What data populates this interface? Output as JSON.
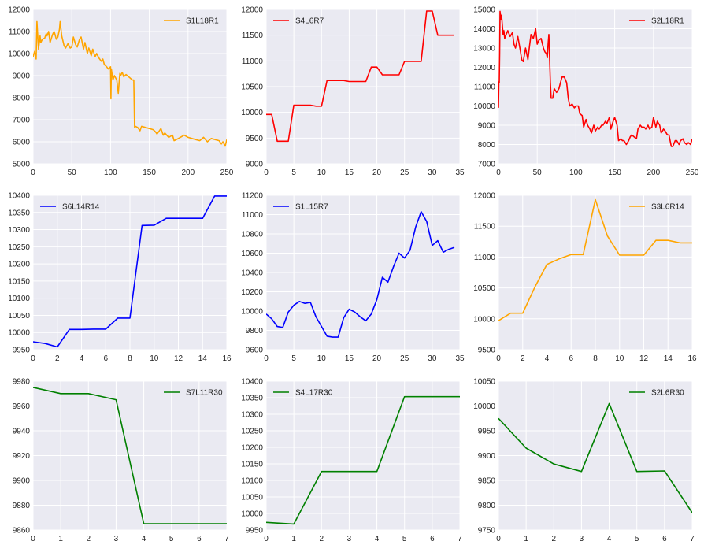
{
  "chart_data": [
    {
      "type": "line",
      "series": [
        {
          "name": "S1L18R1",
          "color": "#ffa500",
          "x": [
            0,
            2,
            4,
            5,
            7,
            9,
            10,
            12,
            15,
            17,
            18,
            20,
            22,
            25,
            27,
            28,
            30,
            32,
            34,
            35,
            37,
            40,
            42,
            45,
            48,
            50,
            52,
            55,
            57,
            60,
            62,
            65,
            67,
            70,
            72,
            75,
            77,
            80,
            82,
            85,
            88,
            90,
            92,
            95,
            97,
            100,
            100.5,
            101,
            103,
            105,
            108,
            110,
            112,
            113,
            115,
            117,
            120,
            125,
            128,
            130,
            131,
            132,
            135,
            138,
            140,
            145,
            150,
            155,
            158,
            160,
            165,
            168,
            170,
            175,
            180,
            182,
            185,
            190,
            195,
            200,
            205,
            210,
            215,
            220,
            225,
            230,
            235,
            240,
            243,
            245,
            248,
            250
          ],
          "y": [
            9850,
            10100,
            9750,
            11450,
            10200,
            10800,
            10500,
            10650,
            10700,
            10900,
            10800,
            11000,
            10500,
            10850,
            11000,
            10900,
            10650,
            10750,
            11100,
            11450,
            10800,
            10350,
            10250,
            10450,
            10250,
            10300,
            10750,
            10400,
            10300,
            10650,
            10750,
            10200,
            10500,
            10000,
            10250,
            9900,
            10200,
            9850,
            10000,
            9800,
            9650,
            9750,
            9500,
            9400,
            9300,
            9400,
            7950,
            9300,
            8800,
            9000,
            8800,
            8200,
            9100,
            9000,
            9150,
            8950,
            9050,
            8900,
            8800,
            8800,
            6650,
            6700,
            6650,
            6500,
            6700,
            6650,
            6600,
            6550,
            6450,
            6350,
            6600,
            6300,
            6400,
            6200,
            6300,
            6050,
            6100,
            6200,
            6300,
            6200,
            6150,
            6100,
            6050,
            6200,
            6000,
            6150,
            6100,
            6050,
            5900,
            6000,
            5800,
            6100
          ]
        }
      ],
      "xlim": [
        0,
        250
      ],
      "ylim": [
        5000,
        12000
      ],
      "xticks": [
        "0",
        "50",
        "100",
        "150",
        "200",
        "250"
      ],
      "xtick_values": [
        0,
        50,
        100,
        150,
        200,
        250
      ],
      "yticks": [
        "5000",
        "6000",
        "7000",
        "8000",
        "9000",
        "10000",
        "11000",
        "12000"
      ],
      "ytick_values": [
        5000,
        6000,
        7000,
        8000,
        9000,
        10000,
        11000,
        12000
      ],
      "legend": "top-right",
      "grid": true
    },
    {
      "type": "line",
      "series": [
        {
          "name": "S4L6R7",
          "color": "#ff0000",
          "x": [
            0,
            1,
            2,
            3,
            4,
            5,
            6,
            7,
            8,
            9,
            10,
            11,
            12,
            13,
            14,
            15,
            16,
            17,
            18,
            19,
            20,
            21,
            22,
            23,
            24,
            25,
            26,
            27,
            28,
            29,
            30,
            31,
            32,
            33,
            34
          ],
          "y": [
            9960,
            9960,
            9440,
            9440,
            9440,
            10140,
            10140,
            10140,
            10140,
            10120,
            10120,
            10620,
            10620,
            10620,
            10620,
            10600,
            10600,
            10600,
            10600,
            10880,
            10880,
            10730,
            10730,
            10730,
            10730,
            10990,
            10990,
            10990,
            10990,
            11970,
            11970,
            11500,
            11500,
            11500,
            11500
          ]
        }
      ],
      "xlim": [
        0,
        35
      ],
      "ylim": [
        9000,
        12000
      ],
      "xticks": [
        "0",
        "5",
        "10",
        "15",
        "20",
        "25",
        "30",
        "35"
      ],
      "xtick_values": [
        0,
        5,
        10,
        15,
        20,
        25,
        30,
        35
      ],
      "yticks": [
        "9000",
        "9500",
        "10000",
        "10500",
        "11000",
        "11500",
        "12000"
      ],
      "ytick_values": [
        9000,
        9500,
        10000,
        10500,
        11000,
        11500,
        12000
      ],
      "legend": "top-left",
      "grid": true
    },
    {
      "type": "line",
      "series": [
        {
          "name": "S2L18R1",
          "color": "#ff0000",
          "x": [
            0,
            0.5,
            1,
            1.5,
            2,
            3,
            4,
            5,
            6,
            7,
            8,
            10,
            12,
            15,
            18,
            20,
            22,
            25,
            28,
            30,
            32,
            35,
            38,
            40,
            42,
            45,
            48,
            50,
            52,
            55,
            58,
            60,
            62,
            63,
            64,
            65,
            66,
            67,
            68,
            70,
            72,
            75,
            78,
            80,
            82,
            85,
            88,
            90,
            92,
            95,
            98,
            100,
            103,
            105,
            108,
            110,
            113,
            115,
            118,
            120,
            123,
            125,
            128,
            130,
            133,
            135,
            138,
            140,
            143,
            145,
            148,
            150,
            153,
            155,
            158,
            160,
            162,
            165,
            168,
            170,
            172,
            175,
            178,
            180,
            183,
            185,
            188,
            190,
            193,
            195,
            198,
            200,
            203,
            205,
            208,
            210,
            213,
            215,
            218,
            220,
            223,
            225,
            228,
            230,
            233,
            235,
            238,
            240,
            243,
            245,
            248,
            250
          ],
          "y": [
            9900,
            11250,
            11200,
            12700,
            14900,
            14500,
            14700,
            14200,
            13700,
            13900,
            13500,
            13700,
            13900,
            13600,
            13800,
            13200,
            13000,
            13600,
            12900,
            12400,
            12300,
            13000,
            12400,
            13100,
            13700,
            13500,
            14000,
            13200,
            13400,
            13500,
            13000,
            12800,
            12700,
            12500,
            13200,
            13700,
            12500,
            11200,
            10400,
            10400,
            10900,
            10700,
            10900,
            11200,
            11500,
            11500,
            11200,
            10400,
            10000,
            10100,
            9900,
            10000,
            10000,
            9600,
            9500,
            8900,
            9300,
            9000,
            8800,
            8600,
            9000,
            8700,
            8900,
            8800,
            9000,
            9000,
            9200,
            9100,
            9400,
            8800,
            9200,
            9400,
            9000,
            8200,
            8300,
            8200,
            8200,
            8000,
            8200,
            8400,
            8500,
            8400,
            8300,
            8800,
            9000,
            8900,
            8900,
            8800,
            9000,
            8800,
            8900,
            9400,
            8900,
            9200,
            9000,
            8600,
            8800,
            8700,
            8500,
            8500,
            7900,
            7900,
            8200,
            8200,
            8000,
            8200,
            8300,
            8100,
            8000,
            8100,
            8000,
            8300
          ],
          "note": ""
        }
      ],
      "xlim": [
        0,
        250
      ],
      "ylim": [
        7000,
        15000
      ],
      "xticks": [
        "0",
        "50",
        "100",
        "150",
        "200",
        "250"
      ],
      "xtick_values": [
        0,
        50,
        100,
        150,
        200,
        250
      ],
      "yticks": [
        "7000",
        "8000",
        "9000",
        "10000",
        "11000",
        "12000",
        "13000",
        "14000",
        "15000"
      ],
      "ytick_values": [
        7000,
        8000,
        9000,
        10000,
        11000,
        12000,
        13000,
        14000,
        15000
      ],
      "legend": "top-right",
      "grid": true
    },
    {
      "type": "line",
      "series": [
        {
          "name": "S6L14R14",
          "color": "#0000ff",
          "x": [
            0,
            1,
            2,
            3,
            4,
            5,
            6,
            7,
            8,
            9,
            10,
            11,
            12,
            13,
            14,
            15,
            16
          ],
          "y": [
            9973,
            9968,
            9958,
            10009,
            10009,
            10010,
            10010,
            10042,
            10042,
            10312,
            10313,
            10333,
            10333,
            10333,
            10333,
            10398,
            10398
          ]
        }
      ],
      "xlim": [
        0,
        16
      ],
      "ylim": [
        9950,
        10400
      ],
      "xticks": [
        "0",
        "2",
        "4",
        "6",
        "8",
        "10",
        "12",
        "14",
        "16"
      ],
      "xtick_values": [
        0,
        2,
        4,
        6,
        8,
        10,
        12,
        14,
        16
      ],
      "yticks": [
        "9950",
        "10000",
        "10050",
        "10100",
        "10150",
        "10200",
        "10250",
        "10300",
        "10350",
        "10400"
      ],
      "ytick_values": [
        9950,
        10000,
        10050,
        10100,
        10150,
        10200,
        10250,
        10300,
        10350,
        10400
      ],
      "legend": "top-left",
      "grid": true
    },
    {
      "type": "line",
      "series": [
        {
          "name": "S1L15R7",
          "color": "#0000ff",
          "x": [
            0,
            1,
            2,
            3,
            4,
            5,
            6,
            7,
            8,
            9,
            10,
            11,
            12,
            13,
            14,
            15,
            16,
            17,
            18,
            19,
            20,
            21,
            22,
            23,
            24,
            25,
            26,
            27,
            28,
            29,
            30,
            31,
            32,
            33,
            34
          ],
          "y": [
            9970,
            9920,
            9840,
            9830,
            9990,
            10060,
            10100,
            10080,
            10090,
            9940,
            9840,
            9740,
            9730,
            9730,
            9930,
            10020,
            9990,
            9940,
            9900,
            9970,
            10120,
            10350,
            10300,
            10460,
            10600,
            10550,
            10630,
            10870,
            11030,
            10930,
            10680,
            10730,
            10610,
            10640,
            10660
          ]
        }
      ],
      "xlim": [
        0,
        35
      ],
      "ylim": [
        9600,
        11200
      ],
      "xticks": [
        "0",
        "5",
        "10",
        "15",
        "20",
        "25",
        "30",
        "35"
      ],
      "xtick_values": [
        0,
        5,
        10,
        15,
        20,
        25,
        30,
        35
      ],
      "yticks": [
        "9600",
        "9800",
        "10000",
        "10200",
        "10400",
        "10600",
        "10800",
        "11000",
        "11200"
      ],
      "ytick_values": [
        9600,
        9800,
        10000,
        10200,
        10400,
        10600,
        10800,
        11000,
        11200
      ],
      "legend": "top-left",
      "grid": true
    },
    {
      "type": "line",
      "series": [
        {
          "name": "S3L6R14",
          "color": "#ffa500",
          "x": [
            0,
            1,
            2,
            3,
            4,
            5,
            6,
            7,
            8,
            9,
            10,
            11,
            12,
            13,
            14,
            15,
            16
          ],
          "y": [
            9970,
            10090,
            10090,
            10510,
            10880,
            10970,
            11040,
            11040,
            11930,
            11340,
            11030,
            11030,
            11030,
            11270,
            11270,
            11230,
            11230
          ]
        }
      ],
      "xlim": [
        0,
        16
      ],
      "ylim": [
        9500,
        12000
      ],
      "xticks": [
        "0",
        "2",
        "4",
        "6",
        "8",
        "10",
        "12",
        "14",
        "16"
      ],
      "xtick_values": [
        0,
        2,
        4,
        6,
        8,
        10,
        12,
        14,
        16
      ],
      "yticks": [
        "9500",
        "10000",
        "10500",
        "11000",
        "11500",
        "12000"
      ],
      "ytick_values": [
        9500,
        10000,
        10500,
        11000,
        11500,
        12000
      ],
      "legend": "top-right",
      "grid": true
    },
    {
      "type": "line",
      "series": [
        {
          "name": "S7L11R30",
          "color": "#008000",
          "x": [
            0,
            1,
            2,
            3,
            4,
            5,
            6,
            7
          ],
          "y": [
            9975,
            9970,
            9970,
            9965,
            9865,
            9865,
            9865,
            9865
          ]
        }
      ],
      "xlim": [
        0,
        7
      ],
      "ylim": [
        9860,
        9980
      ],
      "xticks": [
        "0",
        "1",
        "2",
        "3",
        "4",
        "5",
        "6",
        "7"
      ],
      "xtick_values": [
        0,
        1,
        2,
        3,
        4,
        5,
        6,
        7
      ],
      "yticks": [
        "9860",
        "9880",
        "9900",
        "9920",
        "9940",
        "9960",
        "9980"
      ],
      "ytick_values": [
        9860,
        9880,
        9900,
        9920,
        9940,
        9960,
        9980
      ],
      "legend": "top-right",
      "grid": true
    },
    {
      "type": "line",
      "series": [
        {
          "name": "S4L17R30",
          "color": "#008000",
          "x": [
            0,
            1,
            2,
            3,
            4,
            5,
            6,
            7
          ],
          "y": [
            9973,
            9968,
            10127,
            10127,
            10127,
            10353,
            10353,
            10353
          ]
        }
      ],
      "xlim": [
        0,
        7
      ],
      "ylim": [
        9950,
        10400
      ],
      "xticks": [
        "0",
        "1",
        "2",
        "3",
        "4",
        "5",
        "6",
        "7"
      ],
      "xtick_values": [
        0,
        1,
        2,
        3,
        4,
        5,
        6,
        7
      ],
      "yticks": [
        "9950",
        "10000",
        "10050",
        "10100",
        "10150",
        "10200",
        "10250",
        "10300",
        "10350",
        "10400"
      ],
      "ytick_values": [
        9950,
        10000,
        10050,
        10100,
        10150,
        10200,
        10250,
        10300,
        10350,
        10400
      ],
      "legend": "top-left",
      "grid": true
    },
    {
      "type": "line",
      "series": [
        {
          "name": "S2L6R30",
          "color": "#008000",
          "x": [
            0,
            1,
            2,
            3,
            4,
            5,
            6,
            7
          ],
          "y": [
            9975,
            9915,
            9883,
            9868,
            10005,
            9868,
            9869,
            9785
          ]
        }
      ],
      "xlim": [
        0,
        7
      ],
      "ylim": [
        9750,
        10050
      ],
      "xticks": [
        "0",
        "1",
        "2",
        "3",
        "4",
        "5",
        "6",
        "7"
      ],
      "xtick_values": [
        0,
        1,
        2,
        3,
        4,
        5,
        6,
        7
      ],
      "yticks": [
        "9750",
        "9800",
        "9850",
        "9900",
        "9950",
        "10000",
        "10050"
      ],
      "ytick_values": [
        9750,
        9800,
        9850,
        9900,
        9950,
        10000,
        10050
      ],
      "legend": "top-right",
      "grid": true
    }
  ]
}
